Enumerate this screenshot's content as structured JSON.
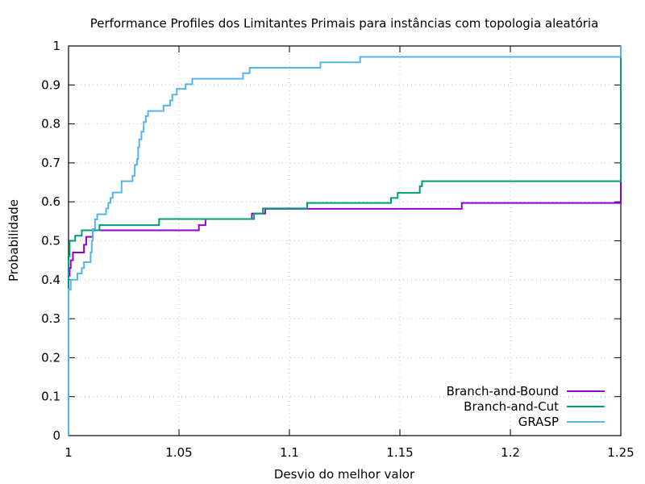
{
  "chart_data": {
    "type": "line",
    "title": "Performance Profiles dos Limitantes Primais para instâncias com topologia aleatória",
    "xlabel": "Desvio do melhor valor",
    "ylabel": "Probabilidade",
    "xlim": [
      1,
      1.25
    ],
    "ylim": [
      0,
      1
    ],
    "xticks": [
      1,
      1.05,
      1.1,
      1.15,
      1.2,
      1.25
    ],
    "xtick_labels": [
      "1",
      "1.05",
      "1.1",
      "1.15",
      "1.2",
      "1.25"
    ],
    "yticks": [
      0,
      0.1,
      0.2,
      0.3,
      0.4,
      0.5,
      0.6,
      0.7,
      0.8,
      0.9,
      1
    ],
    "ytick_labels": [
      "0",
      "0.1",
      "0.2",
      "0.3",
      "0.4",
      "0.5",
      "0.6",
      "0.7",
      "0.8",
      "0.9",
      "1"
    ],
    "grid": true,
    "legend_position": "bottom-right",
    "series": [
      {
        "name": "Branch-and-Bound",
        "color": "#9400d3",
        "step": true,
        "points": [
          [
            1.0,
            0.0
          ],
          [
            1.0,
            0.41
          ],
          [
            1.0005,
            0.43
          ],
          [
            1.001,
            0.45
          ],
          [
            1.002,
            0.47
          ],
          [
            1.007,
            0.49
          ],
          [
            1.008,
            0.51
          ],
          [
            1.011,
            0.527
          ],
          [
            1.059,
            0.54
          ],
          [
            1.062,
            0.556
          ],
          [
            1.083,
            0.57
          ],
          [
            1.089,
            0.582
          ],
          [
            1.178,
            0.597
          ],
          [
            1.25,
            0.6
          ],
          [
            1.25,
            1.0
          ]
        ]
      },
      {
        "name": "Branch-and-Cut",
        "color": "#009e73",
        "step": true,
        "points": [
          [
            1.0,
            0.0
          ],
          [
            1.0,
            0.46
          ],
          [
            1.0005,
            0.5
          ],
          [
            1.003,
            0.513
          ],
          [
            1.006,
            0.527
          ],
          [
            1.014,
            0.54
          ],
          [
            1.041,
            0.556
          ],
          [
            1.084,
            0.57
          ],
          [
            1.088,
            0.583
          ],
          [
            1.108,
            0.597
          ],
          [
            1.146,
            0.61
          ],
          [
            1.149,
            0.623
          ],
          [
            1.159,
            0.64
          ],
          [
            1.16,
            0.653
          ],
          [
            1.25,
            0.655
          ],
          [
            1.25,
            1.0
          ]
        ]
      },
      {
        "name": "GRASP",
        "color": "#56b4e9",
        "step": true,
        "points": [
          [
            1.0,
            0.0
          ],
          [
            1.0,
            0.375
          ],
          [
            1.001,
            0.4
          ],
          [
            1.004,
            0.416
          ],
          [
            1.006,
            0.43
          ],
          [
            1.007,
            0.445
          ],
          [
            1.01,
            0.47
          ],
          [
            1.0105,
            0.5
          ],
          [
            1.011,
            0.53
          ],
          [
            1.012,
            0.555
          ],
          [
            1.013,
            0.568
          ],
          [
            1.017,
            0.583
          ],
          [
            1.018,
            0.597
          ],
          [
            1.019,
            0.61
          ],
          [
            1.02,
            0.624
          ],
          [
            1.024,
            0.653
          ],
          [
            1.029,
            0.667
          ],
          [
            1.03,
            0.695
          ],
          [
            1.031,
            0.71
          ],
          [
            1.0315,
            0.74
          ],
          [
            1.032,
            0.76
          ],
          [
            1.033,
            0.78
          ],
          [
            1.034,
            0.805
          ],
          [
            1.035,
            0.82
          ],
          [
            1.036,
            0.833
          ],
          [
            1.043,
            0.847
          ],
          [
            1.046,
            0.86
          ],
          [
            1.047,
            0.875
          ],
          [
            1.049,
            0.89
          ],
          [
            1.053,
            0.902
          ],
          [
            1.056,
            0.916
          ],
          [
            1.079,
            0.93
          ],
          [
            1.082,
            0.944
          ],
          [
            1.114,
            0.958
          ],
          [
            1.132,
            0.972
          ],
          [
            1.25,
            0.972
          ],
          [
            1.25,
            1.0
          ]
        ]
      }
    ]
  }
}
